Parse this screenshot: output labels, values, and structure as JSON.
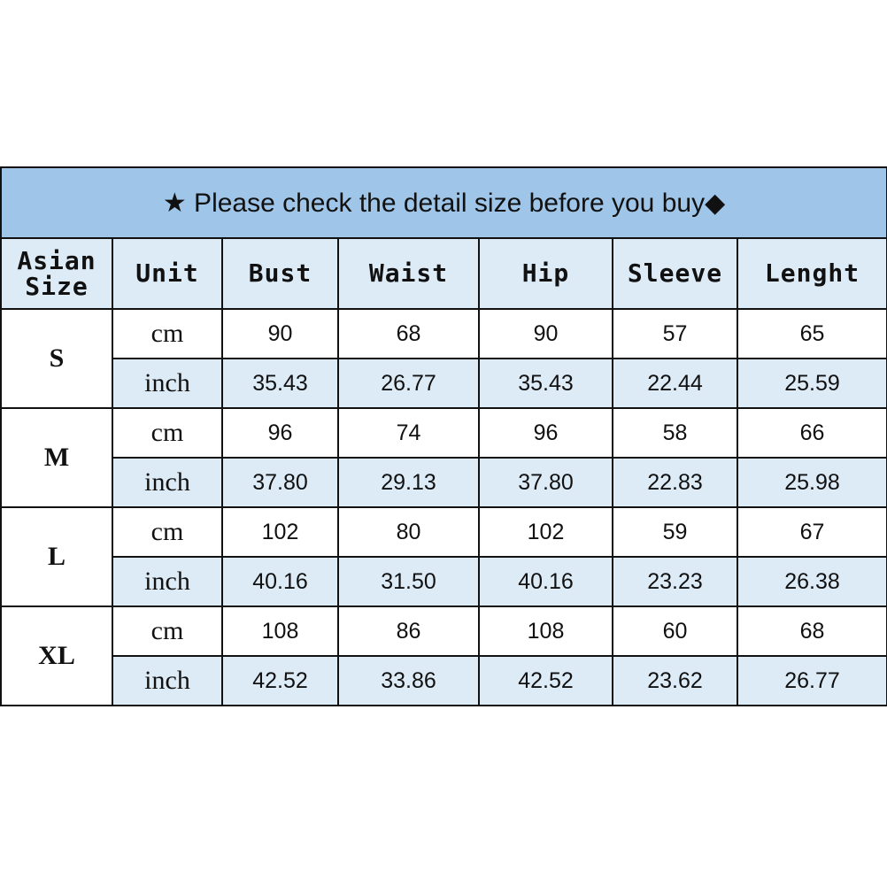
{
  "title": "★ Please check the detail size before you buy◆",
  "headers": [
    "Asian Size",
    "Unit",
    "Bust",
    "Waist",
    "Hip",
    "Sleeve",
    "Lenght"
  ],
  "colors": {
    "title_bg": "#9fc5e8",
    "header_bg": "#ddebf7",
    "inch_row_bg": "#ddebf7"
  },
  "sizes": [
    {
      "size": "S",
      "rows": [
        {
          "unit": "cm",
          "values": [
            "90",
            "68",
            "90",
            "57",
            "65"
          ]
        },
        {
          "unit": "inch",
          "values": [
            "35.43",
            "26.77",
            "35.43",
            "22.44",
            "25.59"
          ]
        }
      ]
    },
    {
      "size": "M",
      "rows": [
        {
          "unit": "cm",
          "values": [
            "96",
            "74",
            "96",
            "58",
            "66"
          ]
        },
        {
          "unit": "inch",
          "values": [
            "37.80",
            "29.13",
            "37.80",
            "22.83",
            "25.98"
          ]
        }
      ]
    },
    {
      "size": "L",
      "rows": [
        {
          "unit": "cm",
          "values": [
            "102",
            "80",
            "102",
            "59",
            "67"
          ]
        },
        {
          "unit": "inch",
          "values": [
            "40.16",
            "31.50",
            "40.16",
            "23.23",
            "26.38"
          ]
        }
      ]
    },
    {
      "size": "XL",
      "rows": [
        {
          "unit": "cm",
          "values": [
            "108",
            "86",
            "108",
            "60",
            "68"
          ]
        },
        {
          "unit": "inch",
          "values": [
            "42.52",
            "33.86",
            "42.52",
            "23.62",
            "26.77"
          ]
        }
      ]
    }
  ]
}
